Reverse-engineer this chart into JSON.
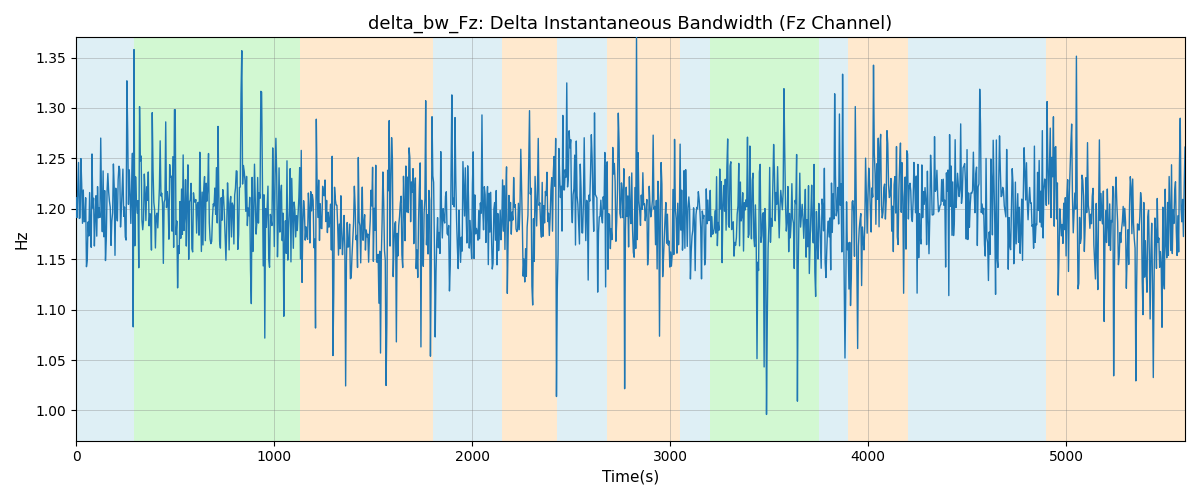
{
  "title": "delta_bw_Fz: Delta Instantaneous Bandwidth (Fz Channel)",
  "xlabel": "Time(s)",
  "ylabel": "Hz",
  "xlim": [
    0,
    5600
  ],
  "ylim": [
    0.97,
    1.37
  ],
  "yticks": [
    1.0,
    1.05,
    1.1,
    1.15,
    1.2,
    1.25,
    1.3,
    1.35
  ],
  "xticks": [
    0,
    1000,
    2000,
    3000,
    4000,
    5000
  ],
  "line_color": "#1f77b4",
  "line_width": 1.0,
  "bg_color": "#ffffff",
  "title_fontsize": 13,
  "axis_fontsize": 11,
  "seed": 42,
  "n_points": 1400,
  "signal_mean": 1.195,
  "signal_std": 0.032,
  "bands": [
    {
      "xmin": 0,
      "xmax": 290,
      "color": "#add8e6",
      "alpha": 0.4
    },
    {
      "xmin": 290,
      "xmax": 1130,
      "color": "#90ee90",
      "alpha": 0.4
    },
    {
      "xmin": 1130,
      "xmax": 1800,
      "color": "#ffd59e",
      "alpha": 0.5
    },
    {
      "xmin": 1800,
      "xmax": 2150,
      "color": "#add8e6",
      "alpha": 0.4
    },
    {
      "xmin": 2150,
      "xmax": 2430,
      "color": "#ffd59e",
      "alpha": 0.5
    },
    {
      "xmin": 2430,
      "xmax": 2680,
      "color": "#add8e6",
      "alpha": 0.4
    },
    {
      "xmin": 2680,
      "xmax": 3050,
      "color": "#ffd59e",
      "alpha": 0.5
    },
    {
      "xmin": 3050,
      "xmax": 3200,
      "color": "#add8e6",
      "alpha": 0.4
    },
    {
      "xmin": 3200,
      "xmax": 3750,
      "color": "#90ee90",
      "alpha": 0.4
    },
    {
      "xmin": 3750,
      "xmax": 3900,
      "color": "#add8e6",
      "alpha": 0.4
    },
    {
      "xmin": 3900,
      "xmax": 4200,
      "color": "#ffd59e",
      "alpha": 0.5
    },
    {
      "xmin": 4200,
      "xmax": 4900,
      "color": "#add8e6",
      "alpha": 0.4
    },
    {
      "xmin": 4900,
      "xmax": 5200,
      "color": "#ffd59e",
      "alpha": 0.5
    },
    {
      "xmin": 5200,
      "xmax": 5600,
      "color": "#ffd59e",
      "alpha": 0.5
    }
  ]
}
